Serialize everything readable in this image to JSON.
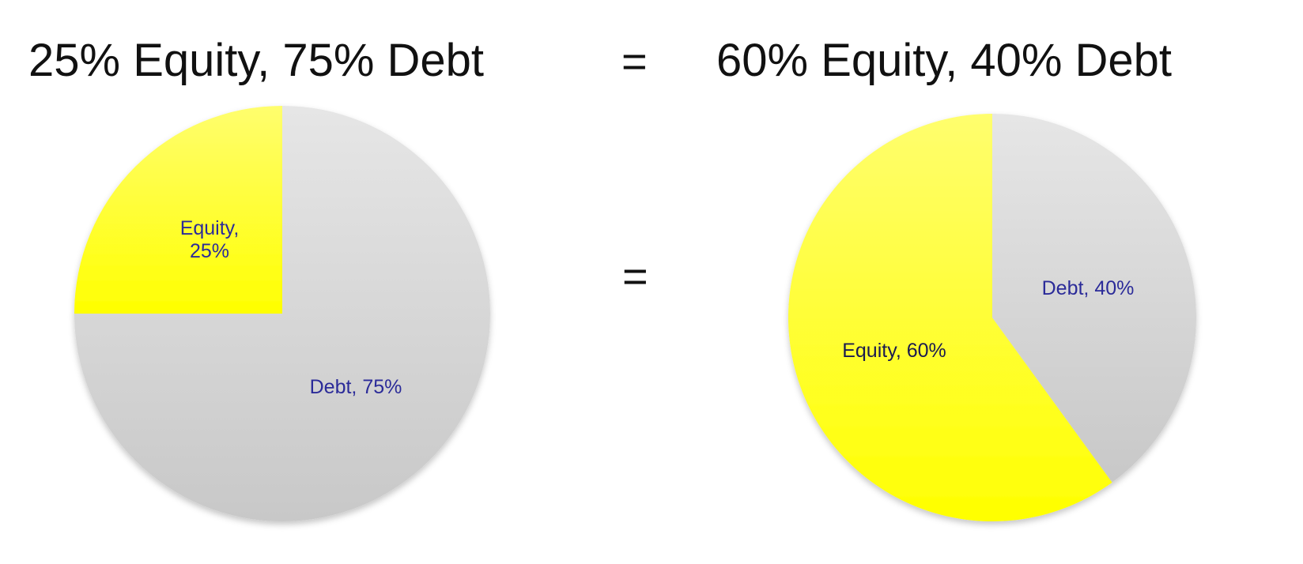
{
  "headings": {
    "left": "25% Equity, 75% Debt",
    "equals": "=",
    "right": "60% Equity, 40% Debt"
  },
  "middle_equals": "=",
  "colors": {
    "equity_light": "#fffe6e",
    "equity_dark": "#ffff00",
    "debt_light": "#e6e6e6",
    "debt_dark": "#c8c8c8",
    "label": "#2b2b99",
    "equity_label_right": "#1a1a50"
  },
  "chart_data": [
    {
      "type": "pie",
      "title": "25% Equity, 75% Debt",
      "slices": [
        {
          "label_lines": [
            "Equity,",
            "25%"
          ],
          "value": 25,
          "category": "Equity"
        },
        {
          "label_lines": [
            "Debt, 75%"
          ],
          "value": 75,
          "category": "Debt"
        }
      ],
      "start": "12 o'clock",
      "direction": "counterclockwise"
    },
    {
      "type": "pie",
      "title": "60% Equity, 40% Debt",
      "slices": [
        {
          "label_lines": [
            "Equity, 60%"
          ],
          "value": 60,
          "category": "Equity"
        },
        {
          "label_lines": [
            "Debt, 40%"
          ],
          "value": 40,
          "category": "Debt"
        }
      ],
      "start": "12 o'clock",
      "direction": "counterclockwise"
    }
  ]
}
